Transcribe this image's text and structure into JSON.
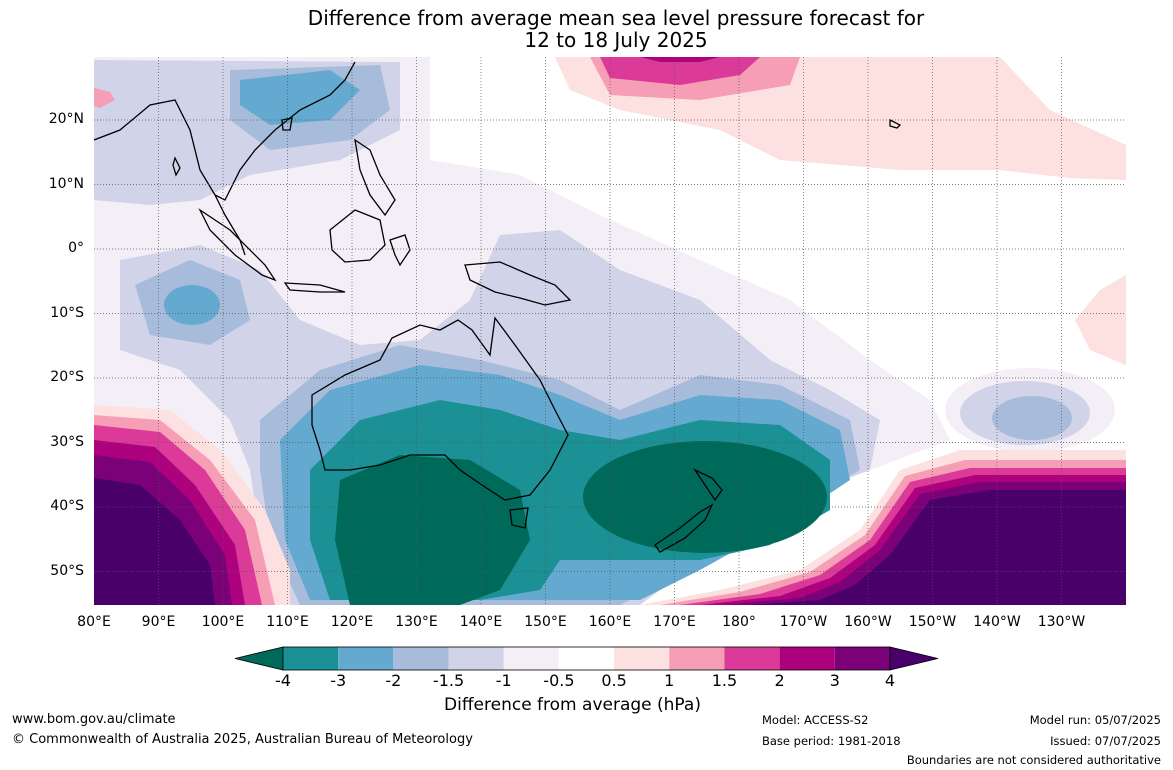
{
  "title": {
    "line1": "Difference from average mean sea level pressure forecast for",
    "line2": "12 to 18 July 2025"
  },
  "axes": {
    "lon_labels": [
      "80°E",
      "90°E",
      "100°E",
      "110°E",
      "120°E",
      "130°E",
      "140°E",
      "150°E",
      "160°E",
      "170°E",
      "180°",
      "170°W",
      "160°W",
      "150°W",
      "140°W",
      "130°W"
    ],
    "lat_labels": [
      "20°N",
      "10°N",
      "0°",
      "10°S",
      "20°S",
      "30°S",
      "40°S",
      "50°S"
    ]
  },
  "legend": {
    "title": "Difference from average (hPa)",
    "tick_labels": [
      "-4",
      "-3",
      "-2",
      "-1.5",
      "-1",
      "-0.5",
      "0.5",
      "1",
      "1.5",
      "2",
      "3",
      "4"
    ],
    "colors": [
      "#006a5a",
      "#1b9196",
      "#64a9cf",
      "#a7bcdb",
      "#d1d3e8",
      "#f4eff6",
      "#ffffff",
      "#fde0e0",
      "#f59eb5",
      "#db3a98",
      "#ae017e",
      "#7a0177",
      "#49006a"
    ]
  },
  "footer": {
    "website": "www.bom.gov.au/climate",
    "copyright": "© Commonwealth of Australia 2025, Australian Bureau of Meteorology",
    "model": "Model: ACCESS-S2",
    "base_period": "Base period: 1981-2018",
    "model_run": "Model run: 05/07/2025",
    "issued": "Issued: 07/07/2025",
    "disclaimer": "Boundaries are not considered authoritative"
  }
}
